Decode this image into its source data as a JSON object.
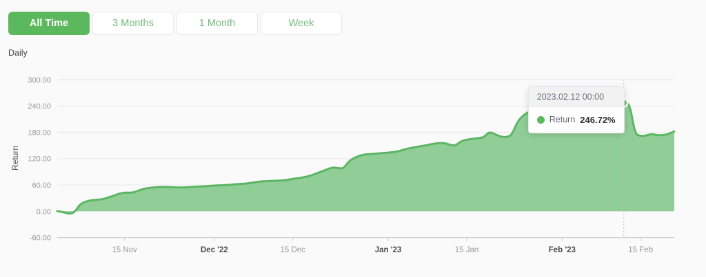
{
  "controls": {
    "period_buttons": [
      {
        "label": "All Time",
        "active": true
      },
      {
        "label": "3 Months",
        "active": false
      },
      {
        "label": "1 Month",
        "active": false
      },
      {
        "label": "Week",
        "active": false
      }
    ],
    "frequency_label": "Daily"
  },
  "colors": {
    "accent_green": "#5cb85c",
    "area_line": "#5bb663",
    "area_fill": "#90cd97",
    "grid": "#e9e9e9",
    "axis": "#cccccc",
    "tick_text": "#999999",
    "tick_text_bold": "#4a4a4a",
    "dotted_line": "#bcbcbc"
  },
  "chart_data": {
    "type": "area",
    "title": "",
    "ylabel": "Return",
    "x_frequency": "daily",
    "ylim": [
      -60,
      300
    ],
    "grid": "horizontal",
    "legend_position": "none",
    "y_ticks": [
      {
        "value": 300,
        "label": "300.00"
      },
      {
        "value": 240,
        "label": "240.00"
      },
      {
        "value": 180,
        "label": "180.00"
      },
      {
        "value": 120,
        "label": "120.00"
      },
      {
        "value": 60,
        "label": "60.00"
      },
      {
        "value": 0,
        "label": "0.00"
      },
      {
        "value": -60,
        "label": "-60.00"
      }
    ],
    "x_ticks": [
      {
        "index": 12,
        "label": "15 Nov",
        "bold": false
      },
      {
        "index": 28,
        "label": "Dec '22",
        "bold": true
      },
      {
        "index": 42,
        "label": "15 Dec",
        "bold": false
      },
      {
        "index": 59,
        "label": "Jan '23",
        "bold": true
      },
      {
        "index": 73,
        "label": "15 Jan",
        "bold": false
      },
      {
        "index": 90,
        "label": "Feb '23",
        "bold": true
      },
      {
        "index": 104,
        "label": "15 Feb",
        "bold": false
      }
    ],
    "x": [
      "2022-11-03",
      "2022-11-04",
      "2022-11-05",
      "2022-11-06",
      "2022-11-07",
      "2022-11-08",
      "2022-11-09",
      "2022-11-10",
      "2022-11-11",
      "2022-11-12",
      "2022-11-13",
      "2022-11-14",
      "2022-11-15",
      "2022-11-16",
      "2022-11-17",
      "2022-11-18",
      "2022-11-19",
      "2022-11-20",
      "2022-11-21",
      "2022-11-22",
      "2022-11-23",
      "2022-11-24",
      "2022-11-25",
      "2022-11-26",
      "2022-11-27",
      "2022-11-28",
      "2022-11-29",
      "2022-11-30",
      "2022-12-01",
      "2022-12-02",
      "2022-12-03",
      "2022-12-04",
      "2022-12-05",
      "2022-12-06",
      "2022-12-07",
      "2022-12-08",
      "2022-12-09",
      "2022-12-10",
      "2022-12-11",
      "2022-12-12",
      "2022-12-13",
      "2022-12-14",
      "2022-12-15",
      "2022-12-16",
      "2022-12-17",
      "2022-12-18",
      "2022-12-19",
      "2022-12-20",
      "2022-12-21",
      "2022-12-22",
      "2022-12-23",
      "2022-12-24",
      "2022-12-25",
      "2022-12-26",
      "2022-12-27",
      "2022-12-28",
      "2022-12-29",
      "2022-12-30",
      "2022-12-31",
      "2023-01-01",
      "2023-01-02",
      "2023-01-03",
      "2023-01-04",
      "2023-01-05",
      "2023-01-06",
      "2023-01-07",
      "2023-01-08",
      "2023-01-09",
      "2023-01-10",
      "2023-01-11",
      "2023-01-12",
      "2023-01-13",
      "2023-01-14",
      "2023-01-15",
      "2023-01-16",
      "2023-01-17",
      "2023-01-18",
      "2023-01-19",
      "2023-01-20",
      "2023-01-21",
      "2023-01-22",
      "2023-01-23",
      "2023-01-24",
      "2023-01-25",
      "2023-01-26",
      "2023-01-27",
      "2023-01-28",
      "2023-01-29",
      "2023-01-30",
      "2023-01-31",
      "2023-02-01",
      "2023-02-02",
      "2023-02-03",
      "2023-02-04",
      "2023-02-05",
      "2023-02-06",
      "2023-02-07",
      "2023-02-08",
      "2023-02-09",
      "2023-02-10",
      "2023-02-11",
      "2023-02-12",
      "2023-02-13",
      "2023-02-14",
      "2023-02-15",
      "2023-02-16",
      "2023-02-17",
      "2023-02-18",
      "2023-02-19",
      "2023-02-20",
      "2023-02-21"
    ],
    "values": [
      0,
      -1.5,
      -6,
      -4,
      15,
      22,
      25,
      26,
      27,
      31,
      35,
      40,
      42.5,
      42,
      44,
      50,
      52.5,
      54,
      55,
      55.5,
      55,
      54.5,
      54,
      54.5,
      55.5,
      56,
      56.5,
      57.5,
      58.5,
      59,
      59.5,
      60.5,
      62,
      62.5,
      63.5,
      65.5,
      67.5,
      68.5,
      69,
      69.5,
      70,
      71,
      74,
      75.5,
      77.5,
      80.5,
      85,
      90,
      95,
      100,
      98.5,
      97,
      114,
      122,
      127,
      129.5,
      130.5,
      131.5,
      132.5,
      133.5,
      135,
      137,
      141.5,
      144,
      146.5,
      148.5,
      151,
      153.5,
      155,
      156,
      151,
      149.5,
      160,
      163,
      165,
      166.5,
      168,
      181,
      176,
      170,
      168.5,
      173,
      203,
      218,
      226,
      229,
      231,
      233,
      234.5,
      236,
      237.5,
      238.5,
      239.5,
      240.5,
      241,
      242,
      242.5,
      243.5,
      244,
      244.5,
      245.5,
      246.72,
      248,
      176,
      171,
      172.5,
      176.5,
      173,
      173.5,
      176,
      182
    ],
    "highlight": {
      "index": 101,
      "date": "2023-02-12",
      "value": 246.72
    },
    "tooltip": {
      "title": "2023.02.12 00:00",
      "series": "Return",
      "value": "246.72%"
    }
  }
}
